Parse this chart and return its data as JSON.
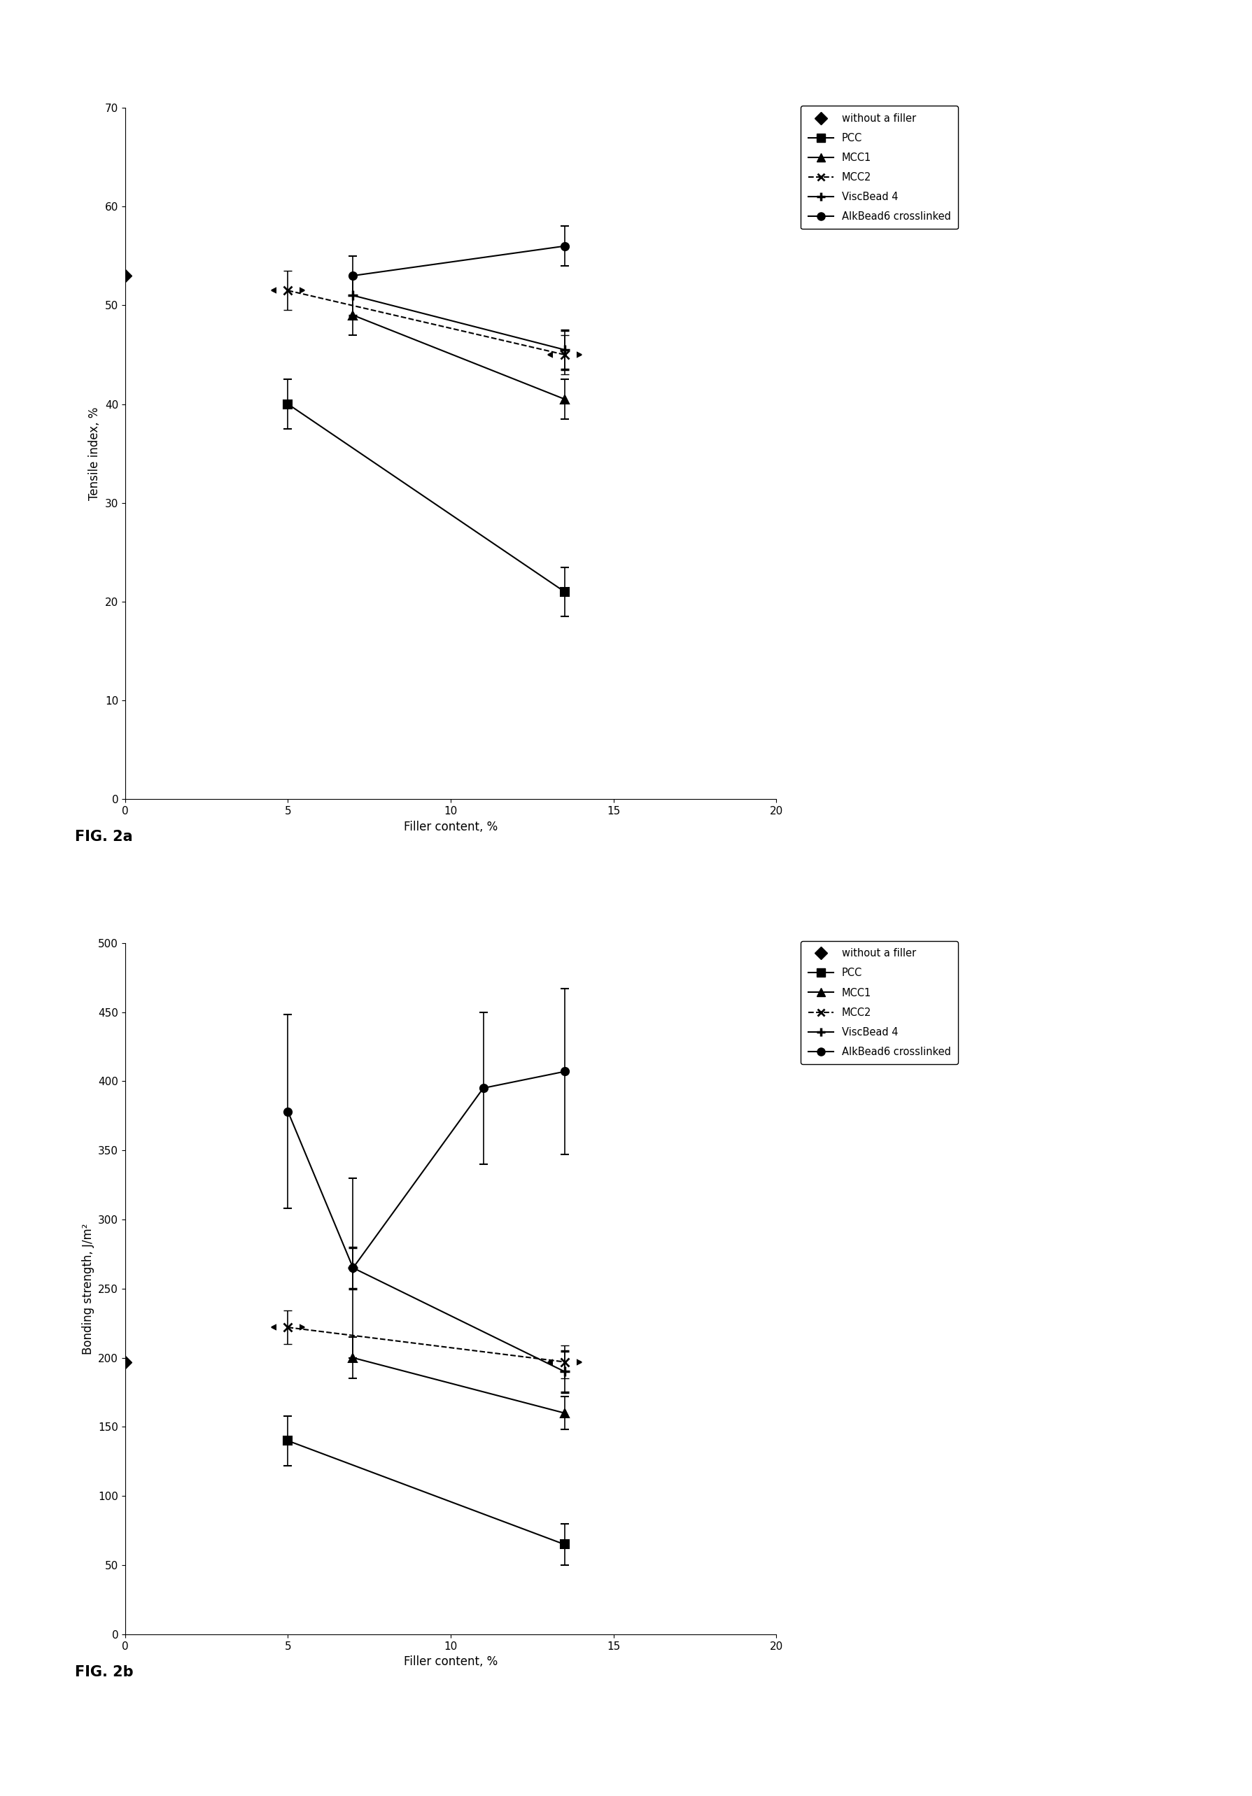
{
  "fig2a": {
    "xlabel": "Filler content, %",
    "ylabel": "Tensile index, %",
    "xlim": [
      0,
      20
    ],
    "ylim": [
      0,
      70
    ],
    "xticks": [
      0,
      5,
      10,
      15,
      20
    ],
    "yticks": [
      0,
      10,
      20,
      30,
      40,
      50,
      60,
      70
    ],
    "series_order": [
      "without_filler",
      "PCC",
      "MCC1",
      "MCC2",
      "ViscBead4",
      "AlkBead6"
    ],
    "series": {
      "without_filler": {
        "label": "without a filler",
        "x": [
          0
        ],
        "y": [
          53
        ],
        "yerr": [
          0
        ],
        "marker": "D",
        "markersize": 9,
        "linestyle": "none"
      },
      "PCC": {
        "label": "PCC",
        "x": [
          5,
          13.5
        ],
        "y": [
          40,
          21
        ],
        "yerr": [
          2.5,
          2.5
        ],
        "marker": "s",
        "markersize": 8,
        "linestyle": "-"
      },
      "MCC1": {
        "label": "MCC1",
        "x": [
          7,
          13.5
        ],
        "y": [
          49,
          40.5
        ],
        "yerr": [
          2.0,
          2.0
        ],
        "marker": "^",
        "markersize": 8,
        "linestyle": "-"
      },
      "MCC2": {
        "label": "MCC2",
        "x": [
          5,
          13.5
        ],
        "y": [
          51.5,
          45
        ],
        "yerr": [
          2.0,
          2.0
        ],
        "marker": "mcc2",
        "markersize": 8,
        "linestyle": "--"
      },
      "ViscBead4": {
        "label": "ViscBead 4",
        "x": [
          7,
          13.5
        ],
        "y": [
          51,
          45.5
        ],
        "yerr": [
          2.0,
          2.0
        ],
        "marker": "visc",
        "markersize": 10,
        "linestyle": "-"
      },
      "AlkBead6": {
        "label": "AlkBead6 crosslinked",
        "x": [
          7,
          13.5
        ],
        "y": [
          53,
          56
        ],
        "yerr": [
          2.0,
          2.0
        ],
        "marker": "o",
        "markersize": 8,
        "linestyle": "-"
      }
    }
  },
  "fig2b": {
    "xlabel": "Filler content, %",
    "ylabel": "Bonding strength, J/m²",
    "xlim": [
      0,
      20
    ],
    "ylim": [
      0,
      500
    ],
    "xticks": [
      0,
      5,
      10,
      15,
      20
    ],
    "yticks": [
      0,
      50,
      100,
      150,
      200,
      250,
      300,
      350,
      400,
      450,
      500
    ],
    "series_order": [
      "without_filler",
      "PCC",
      "MCC1",
      "MCC2",
      "ViscBead4",
      "AlkBead6"
    ],
    "series": {
      "without_filler": {
        "label": "without a filler",
        "x": [
          0
        ],
        "y": [
          197
        ],
        "yerr": [
          0
        ],
        "marker": "D",
        "markersize": 9,
        "linestyle": "none"
      },
      "PCC": {
        "label": "PCC",
        "x": [
          5,
          13.5
        ],
        "y": [
          140,
          65
        ],
        "yerr": [
          18,
          15
        ],
        "marker": "s",
        "markersize": 8,
        "linestyle": "-"
      },
      "MCC1": {
        "label": "MCC1",
        "x": [
          7,
          13.5
        ],
        "y": [
          200,
          160
        ],
        "yerr": [
          15,
          12
        ],
        "marker": "^",
        "markersize": 8,
        "linestyle": "-"
      },
      "MCC2": {
        "label": "MCC2",
        "x": [
          5,
          13.5
        ],
        "y": [
          222,
          197
        ],
        "yerr": [
          12,
          12
        ],
        "marker": "mcc2",
        "markersize": 8,
        "linestyle": "--"
      },
      "ViscBead4": {
        "label": "ViscBead 4",
        "x": [
          7,
          13.5
        ],
        "y": [
          265,
          190
        ],
        "yerr": [
          15,
          15
        ],
        "marker": "visc",
        "markersize": 10,
        "linestyle": "-"
      },
      "AlkBead6": {
        "label": "AlkBead6 crosslinked",
        "x": [
          5,
          7,
          11,
          13.5
        ],
        "y": [
          378,
          265,
          395,
          407
        ],
        "yerr": [
          70,
          65,
          55,
          60
        ],
        "marker": "o",
        "markersize": 8,
        "linestyle": "-"
      }
    }
  },
  "fig_label_a": "FIG. 2a",
  "fig_label_b": "FIG. 2b",
  "background_color": "white",
  "legend_fontsize": 10.5,
  "axis_fontsize": 12,
  "tick_fontsize": 11
}
